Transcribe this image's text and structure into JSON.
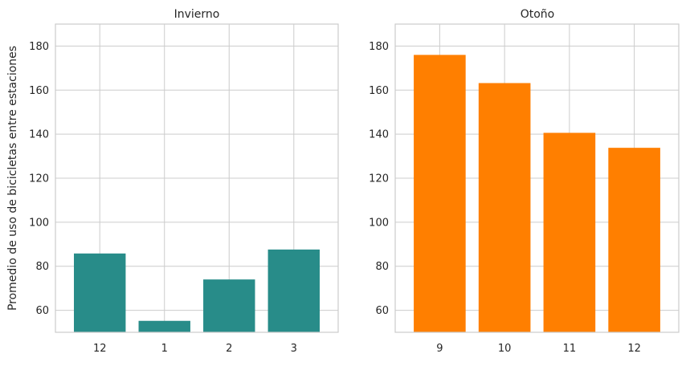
{
  "chart_data": [
    {
      "type": "bar",
      "title": "Invierno",
      "categories": [
        "12",
        "1",
        "2",
        "3"
      ],
      "values": [
        85.8,
        55.2,
        74.0,
        87.6
      ],
      "ylabel": "Promedio de uso de bicicletas entre estaciones",
      "xlabel": "",
      "ylim": [
        50,
        190
      ],
      "yticks": [
        "60",
        "80",
        "100",
        "120",
        "140",
        "160",
        "180"
      ],
      "color": "#288c89",
      "grid": true
    },
    {
      "type": "bar",
      "title": "Otoño",
      "categories": [
        "9",
        "10",
        "11",
        "12"
      ],
      "values": [
        176.0,
        163.2,
        140.6,
        133.8
      ],
      "ylabel": "",
      "xlabel": "",
      "ylim": [
        50,
        190
      ],
      "yticks": [
        "60",
        "80",
        "100",
        "120",
        "140",
        "160",
        "180"
      ],
      "color": "#ff7f00",
      "grid": true
    }
  ]
}
